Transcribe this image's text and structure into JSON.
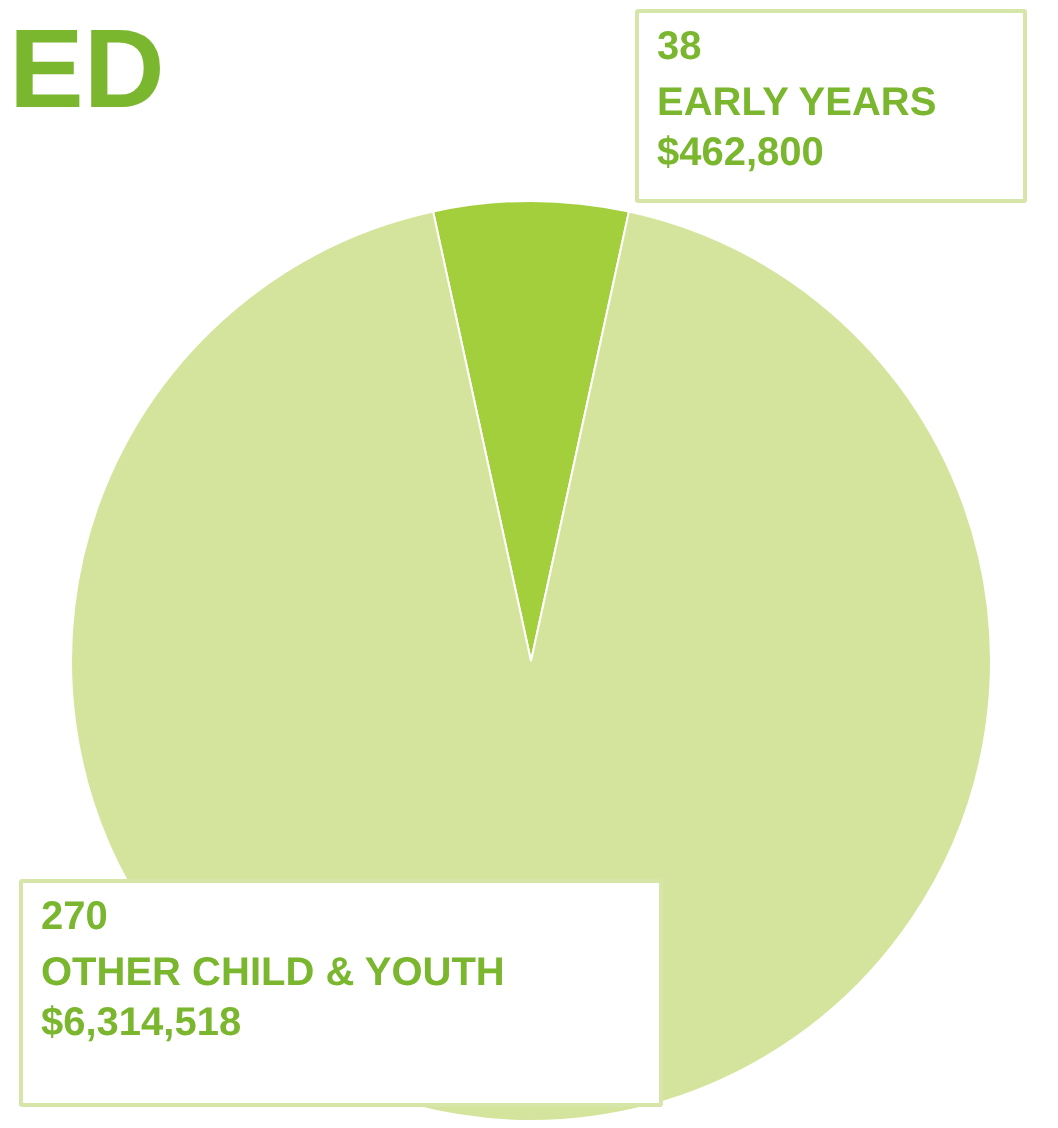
{
  "chart_data": {
    "type": "pie",
    "title": "ED",
    "categories": [
      "EARLY YEARS",
      "OTHER CHILD & YOUTH"
    ],
    "values": [
      462800,
      6314518
    ],
    "value_labels": [
      "$462,800",
      "$6,314,518"
    ],
    "annotations": [
      "38",
      "270"
    ],
    "colors": [
      "#a3cf3c",
      "#d4e49c"
    ]
  }
}
